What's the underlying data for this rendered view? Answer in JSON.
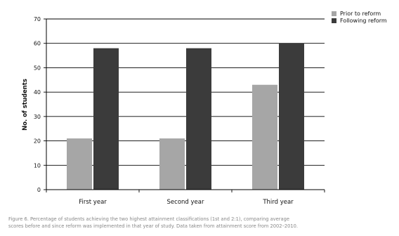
{
  "chart_data": {
    "type": "bar",
    "title": "",
    "xlabel": "",
    "ylabel": "No. of students",
    "ylim": [
      0,
      70
    ],
    "yticks": [
      0,
      10,
      20,
      30,
      40,
      50,
      60,
      70
    ],
    "grid": true,
    "legend_position": "top-right",
    "categories": [
      "First year",
      "Second year",
      "Third year"
    ],
    "series": [
      {
        "name": "Prior to reform",
        "values": [
          21,
          21,
          43
        ],
        "color": "#a6a6a6"
      },
      {
        "name": "Following reform",
        "values": [
          58,
          58,
          60
        ],
        "color": "#3b3b3b"
      }
    ]
  },
  "caption": {
    "line1": "Figure 6. Percentage of students achieving the two highest attainment classifications (1st and 2:1), comparing average",
    "line2": "scores before and since reform was implemented in that year of study. Data taken from attainment score from 2002–2010."
  }
}
